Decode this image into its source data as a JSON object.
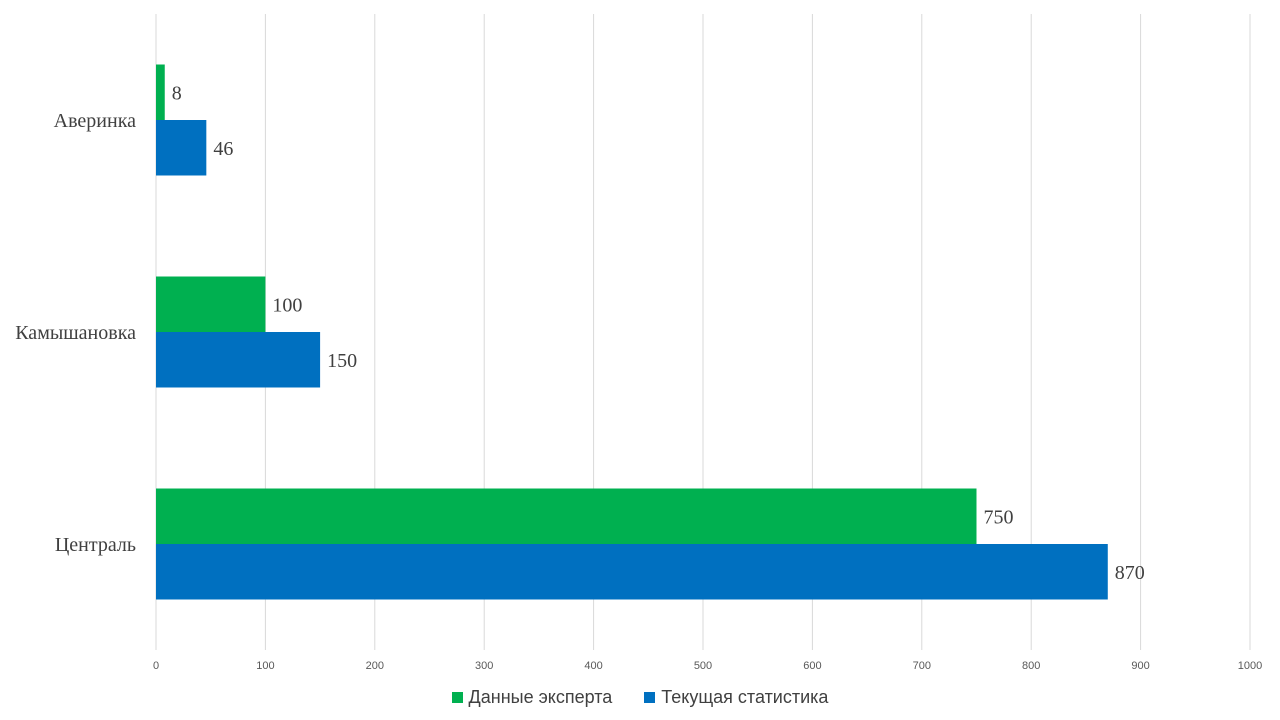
{
  "chart_data": {
    "type": "bar",
    "orientation": "horizontal",
    "categories": [
      "Аверинка",
      "Камышановка",
      "Централь"
    ],
    "series": [
      {
        "name": "Данные эксперта",
        "color": "#00B050",
        "values": [
          8,
          100,
          750
        ]
      },
      {
        "name": "Текущая статистика",
        "color": "#0070C0",
        "values": [
          46,
          150,
          870
        ]
      }
    ],
    "xlim": [
      0,
      1000
    ],
    "xticks": [
      0,
      100,
      200,
      300,
      400,
      500,
      600,
      700,
      800,
      900,
      1000
    ],
    "xtick_labels": [
      "0",
      "100",
      "200",
      "300",
      "400",
      "500",
      "600",
      "700",
      "800",
      "900",
      "1000"
    ],
    "grid": "vertical",
    "legend_position": "bottom",
    "data_labels": true
  },
  "legend": {
    "items": [
      {
        "label": "Данные эксперта",
        "color": "#00B050"
      },
      {
        "label": "Текущая статистика",
        "color": "#0070C0"
      }
    ]
  }
}
